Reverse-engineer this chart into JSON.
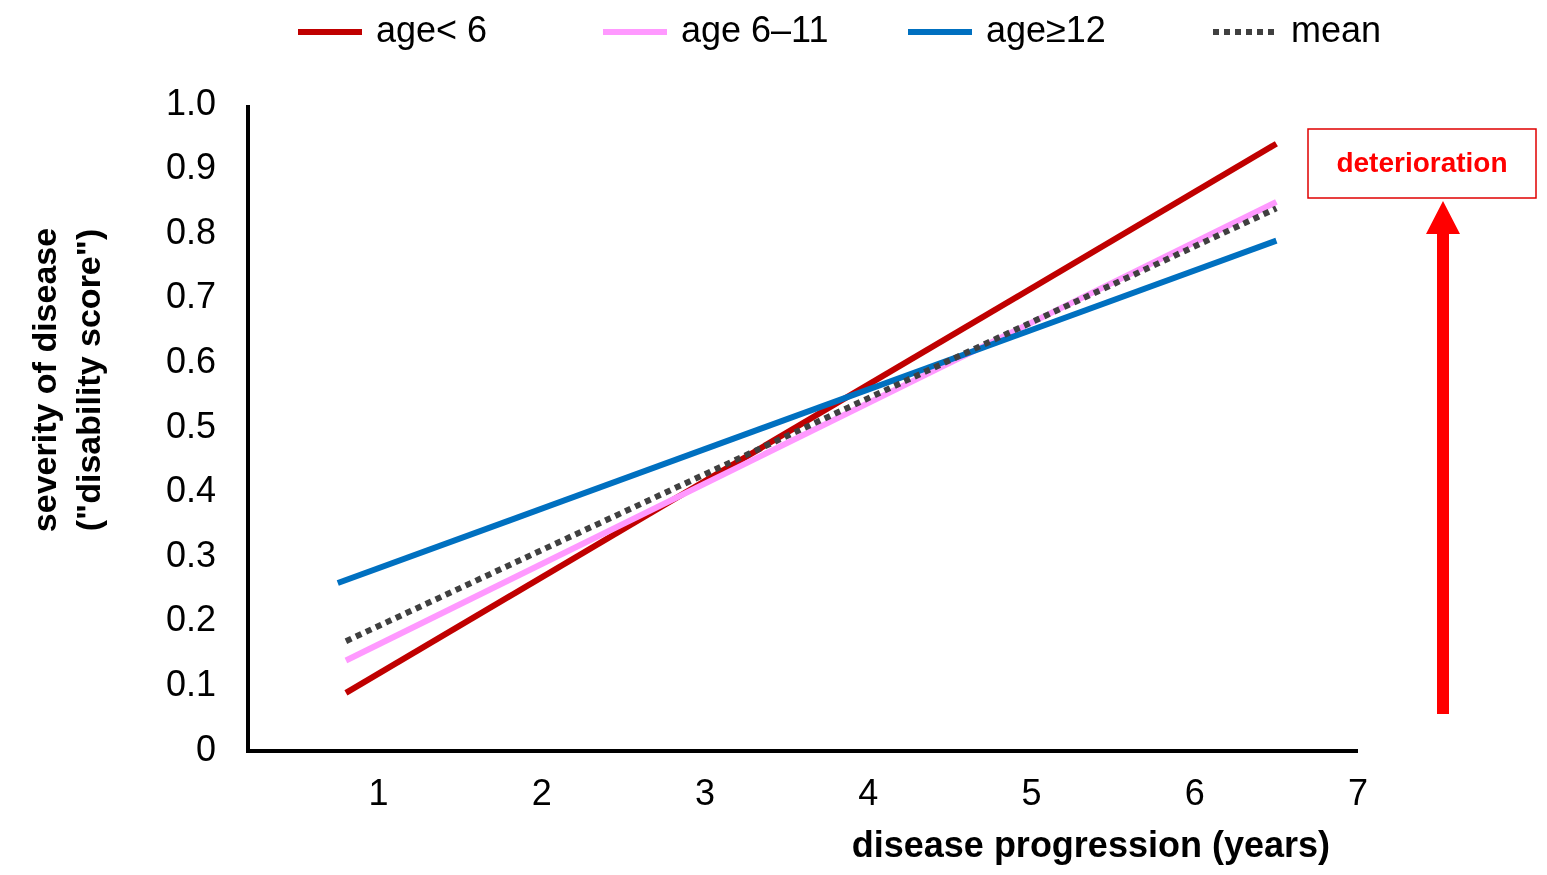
{
  "chart_data": {
    "type": "line",
    "xlabel": "disease progression (years)",
    "ylabel": "severity of disease\n(\"disability score\")",
    "xlim": [
      0.2,
      7
    ],
    "xticks": [
      1,
      2,
      3,
      4,
      5,
      6,
      7
    ],
    "ylim": [
      0,
      1
    ],
    "yticks": [
      0,
      0.1,
      0.2,
      0.3,
      0.4,
      0.5,
      0.6,
      0.7,
      0.8,
      0.9,
      {
        "value": 1,
        "label": "1.0"
      }
    ],
    "series": [
      {
        "name": "age< 6",
        "color": "#c00000",
        "x": [
          0.8,
          6.5
        ],
        "values": [
          0.09,
          0.94
        ]
      },
      {
        "name": "age 6–11",
        "color": "#ff99ff",
        "x": [
          0.8,
          6.5
        ],
        "values": [
          0.14,
          0.85
        ]
      },
      {
        "name": "age≥12",
        "color": "#0070c0",
        "x": [
          0.75,
          6.5
        ],
        "values": [
          0.26,
          0.79
        ]
      },
      {
        "name": "mean",
        "color": "#404040",
        "x": [
          0.8,
          6.5
        ],
        "values": [
          0.17,
          0.84
        ],
        "line_style": "dotted"
      }
    ],
    "legend": "top",
    "grid": false,
    "annotations": [
      "deterioration"
    ]
  }
}
